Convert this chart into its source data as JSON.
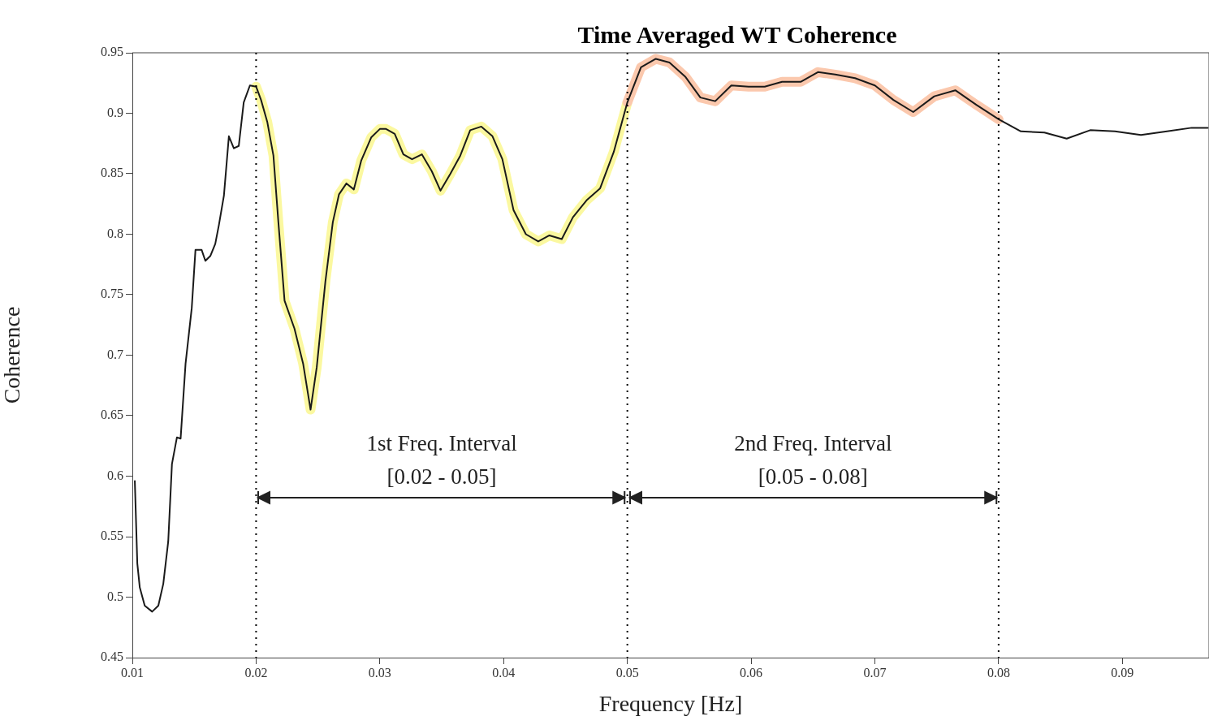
{
  "chart_data": {
    "type": "line",
    "title": "Time Averaged WT Coherence",
    "xlabel": "Frequency [Hz]",
    "ylabel": "Coherence",
    "xlim": [
      0.01,
      0.097
    ],
    "xticks": [
      0.01,
      0.02,
      0.03,
      0.04,
      0.05,
      0.06,
      0.07,
      0.08,
      0.09
    ],
    "ylim": [
      0.45,
      0.95
    ],
    "yticks": [
      0.45,
      0.5,
      0.55,
      0.6,
      0.65,
      0.7,
      0.75,
      0.8,
      0.85,
      0.9,
      0.95
    ],
    "grid": false,
    "legend": false,
    "marker": "none",
    "line_style": "solid",
    "series": [
      {
        "color": "#fbf8a0",
        "x": [
          0.02,
          0.0204,
          0.0209,
          0.0214,
          0.0218,
          0.0223,
          0.0231,
          0.0238,
          0.0244,
          0.0249,
          0.0256,
          0.0262,
          0.0267,
          0.0273,
          0.0279,
          0.0285,
          0.0293,
          0.03,
          0.0305,
          0.0312,
          0.0319,
          0.0326,
          0.0334,
          0.0342,
          0.0349,
          0.0357,
          0.0365,
          0.0373,
          0.0382,
          0.0391,
          0.0399,
          0.0408,
          0.0418,
          0.0428,
          0.0437,
          0.0447,
          0.0456,
          0.0467,
          0.0478,
          0.0489,
          0.05
        ],
        "values": [
          0.922,
          0.911,
          0.893,
          0.865,
          0.81,
          0.745,
          0.722,
          0.693,
          0.655,
          0.69,
          0.761,
          0.81,
          0.833,
          0.842,
          0.837,
          0.861,
          0.88,
          0.887,
          0.887,
          0.883,
          0.866,
          0.862,
          0.866,
          0.852,
          0.836,
          0.85,
          0.865,
          0.886,
          0.889,
          0.881,
          0.862,
          0.82,
          0.8,
          0.794,
          0.799,
          0.796,
          0.814,
          0.828,
          0.838,
          0.868,
          0.909
        ]
      },
      {
        "color": "#fbc8ad",
        "x": [
          0.05,
          0.0511,
          0.0523,
          0.0534,
          0.0547,
          0.0559,
          0.0571,
          0.0584,
          0.0598,
          0.0611,
          0.0625,
          0.064,
          0.0654,
          0.0668,
          0.0684,
          0.07,
          0.0715,
          0.0731,
          0.0748,
          0.0765,
          0.0782,
          0.08
        ],
        "values": [
          0.909,
          0.938,
          0.945,
          0.942,
          0.93,
          0.913,
          0.91,
          0.923,
          0.922,
          0.922,
          0.926,
          0.926,
          0.934,
          0.932,
          0.929,
          0.923,
          0.911,
          0.901,
          0.914,
          0.919,
          0.907,
          0.895
        ]
      },
      {
        "color": "#1a1a1a",
        "x": [
          0.0102,
          0.0104,
          0.0106,
          0.011,
          0.0116,
          0.0121,
          0.0125,
          0.0129,
          0.0132,
          0.0136,
          0.0139,
          0.0143,
          0.0148,
          0.0151,
          0.0156,
          0.0159,
          0.0163,
          0.0167,
          0.017,
          0.0174,
          0.0178,
          0.0182,
          0.0186,
          0.019,
          0.0195,
          0.02,
          0.0204,
          0.0209,
          0.0214,
          0.0218,
          0.0223,
          0.0231,
          0.0238,
          0.0244,
          0.0249,
          0.0256,
          0.0262,
          0.0267,
          0.0273,
          0.0279,
          0.0285,
          0.0293,
          0.03,
          0.0305,
          0.0312,
          0.0319,
          0.0326,
          0.0334,
          0.0342,
          0.0349,
          0.0357,
          0.0365,
          0.0373,
          0.0382,
          0.0391,
          0.0399,
          0.0408,
          0.0418,
          0.0428,
          0.0437,
          0.0447,
          0.0456,
          0.0467,
          0.0478,
          0.0489,
          0.05,
          0.0511,
          0.0523,
          0.0534,
          0.0547,
          0.0559,
          0.0571,
          0.0584,
          0.0598,
          0.0611,
          0.0625,
          0.064,
          0.0654,
          0.0668,
          0.0684,
          0.07,
          0.0715,
          0.0731,
          0.0748,
          0.0765,
          0.0782,
          0.08,
          0.0818,
          0.0837,
          0.0855,
          0.0874,
          0.0894,
          0.0915,
          0.0936,
          0.0956,
          0.0969
        ],
        "values": [
          0.596,
          0.528,
          0.508,
          0.493,
          0.488,
          0.493,
          0.511,
          0.546,
          0.61,
          0.632,
          0.631,
          0.693,
          0.739,
          0.787,
          0.787,
          0.778,
          0.782,
          0.792,
          0.808,
          0.832,
          0.881,
          0.871,
          0.873,
          0.909,
          0.923,
          0.922,
          0.911,
          0.893,
          0.865,
          0.81,
          0.745,
          0.722,
          0.693,
          0.655,
          0.69,
          0.761,
          0.81,
          0.833,
          0.842,
          0.837,
          0.861,
          0.88,
          0.887,
          0.887,
          0.883,
          0.866,
          0.862,
          0.866,
          0.852,
          0.836,
          0.85,
          0.865,
          0.886,
          0.889,
          0.881,
          0.862,
          0.82,
          0.8,
          0.794,
          0.799,
          0.796,
          0.814,
          0.828,
          0.838,
          0.868,
          0.909,
          0.938,
          0.945,
          0.942,
          0.93,
          0.913,
          0.91,
          0.923,
          0.922,
          0.922,
          0.926,
          0.926,
          0.934,
          0.932,
          0.929,
          0.923,
          0.911,
          0.901,
          0.914,
          0.919,
          0.907,
          0.895,
          0.885,
          0.884,
          0.879,
          0.886,
          0.885,
          0.882,
          0.885,
          0.888,
          0.888
        ]
      }
    ],
    "ref_lines": [
      {
        "axis": "x",
        "value": 0.02,
        "color": "#000000",
        "line_style": "dotted"
      },
      {
        "axis": "x",
        "value": 0.05,
        "color": "#000000",
        "line_style": "dotted"
      },
      {
        "axis": "x",
        "value": 0.08,
        "color": "#000000",
        "line_style": "dotted"
      }
    ],
    "annotations": [
      "1st Freq. Interval",
      "[0.02 - 0.05]",
      "2nd Freq. Interval",
      "[0.05 - 0.08]"
    ]
  }
}
